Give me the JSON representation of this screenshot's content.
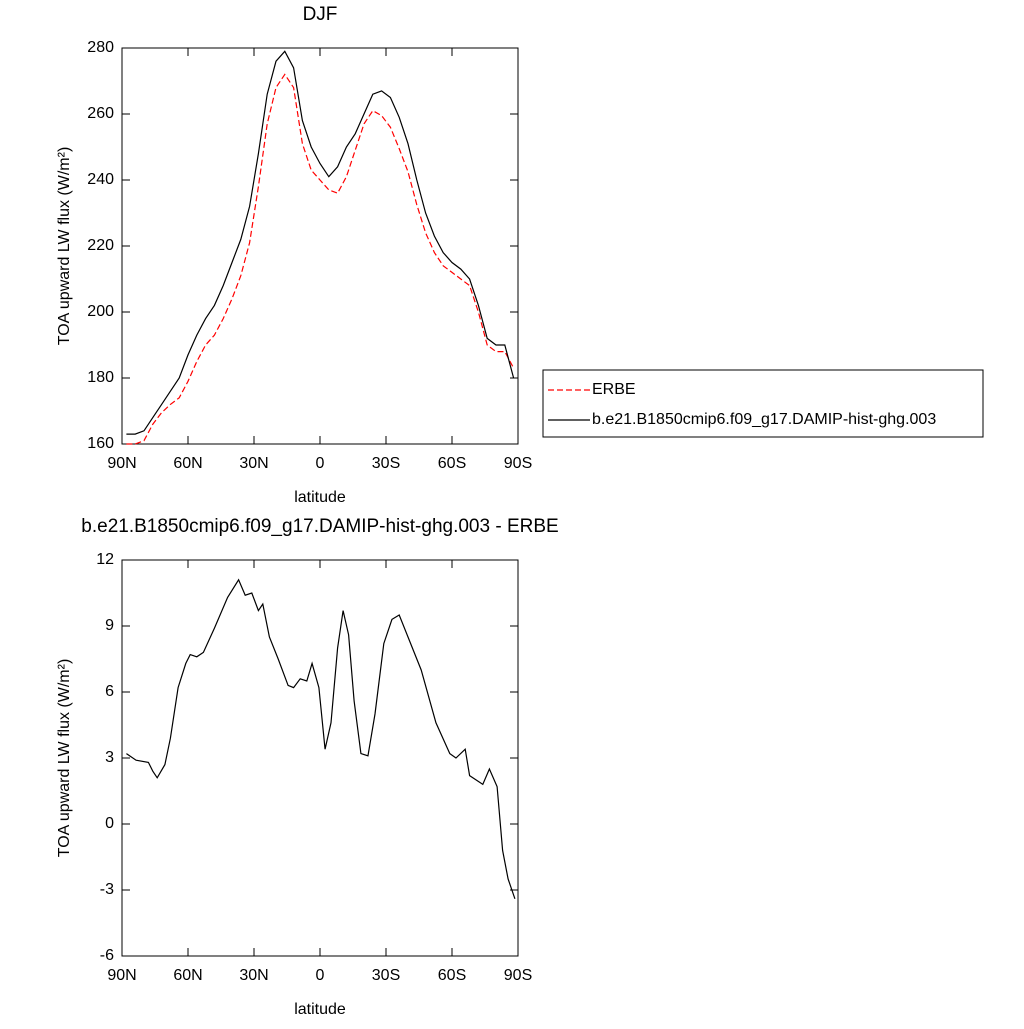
{
  "chart_data": [
    {
      "type": "line",
      "title": "DJF",
      "x_label": "latitude",
      "y_label": "TOA upward LW flux (W/m²)",
      "x": [
        88,
        84,
        80,
        76,
        72,
        68,
        64,
        60,
        56,
        52,
        48,
        44,
        40,
        36,
        32,
        28,
        24,
        20,
        16,
        12,
        8,
        4,
        0,
        -4,
        -8,
        -12,
        -16,
        -20,
        -24,
        -28,
        -32,
        -36,
        -40,
        -44,
        -48,
        -52,
        -56,
        -60,
        -64,
        -68,
        -72,
        -76,
        -80,
        -84,
        -88
      ],
      "series": [
        {
          "name": "ERBE",
          "color": "#ff0000",
          "line_style": "dashed",
          "values": [
            160,
            160,
            161,
            166,
            169.5,
            172,
            174,
            179,
            185,
            190,
            193,
            198,
            204,
            211,
            221,
            238,
            257,
            268,
            272,
            268,
            251,
            243,
            240,
            237,
            236,
            241,
            249,
            257,
            261,
            259.5,
            256,
            249.5,
            242.5,
            232.5,
            224,
            218,
            214,
            212,
            210,
            208,
            200,
            190,
            188,
            188,
            183
          ]
        },
        {
          "name": "b.e21.B1850cmip6.f09_g17.DAMIP-hist-ghg.003",
          "color": "#000000",
          "line_style": "solid",
          "values": [
            163,
            163,
            164,
            168,
            172,
            176,
            180,
            187,
            193,
            198,
            202,
            208,
            215,
            222,
            232,
            248,
            266,
            276,
            279,
            274,
            258,
            250,
            245,
            241,
            244,
            250,
            254,
            260,
            266,
            267,
            265,
            259,
            251,
            240,
            230,
            223,
            218,
            215,
            213,
            210,
            202,
            192,
            190,
            190,
            180
          ]
        }
      ],
      "xlim": [
        90,
        -90
      ],
      "xticks": [
        {
          "value": 90,
          "label": "90N"
        },
        {
          "value": 60,
          "label": "60N"
        },
        {
          "value": 30,
          "label": "30N"
        },
        0,
        {
          "value": -30,
          "label": "30S"
        },
        {
          "value": -60,
          "label": "60S"
        },
        {
          "value": -90,
          "label": "90S"
        }
      ],
      "ylim": [
        160,
        280
      ],
      "yticks": [
        160,
        180,
        200,
        220,
        240,
        260,
        280
      ],
      "legend": "right"
    },
    {
      "type": "line",
      "title": "b.e21.B1850cmip6.f09_g17.DAMIP-hist-ghg.003 - ERBE",
      "x_label": "latitude",
      "y_label": "TOA upward LW flux (W/m²)",
      "x": [
        88,
        83.6,
        78,
        76,
        74,
        70.5,
        68,
        64.5,
        61,
        59,
        56,
        53,
        48,
        42,
        37,
        34,
        31,
        28,
        26,
        23,
        19,
        14.5,
        12,
        9,
        6,
        3.6,
        0.5,
        -2.3,
        -5,
        -8,
        -10.5,
        -13,
        -15.5,
        -18.6,
        -21.8,
        -25,
        -29,
        -32.7,
        -36,
        -40,
        -46,
        -52.7,
        -59,
        -61.8,
        -66,
        -68,
        -74,
        -77,
        -80.5,
        -83,
        -85.5,
        -88.6
      ],
      "series": [
        {
          "color": "#000000",
          "line_style": "solid",
          "values": [
            3.2,
            2.9,
            2.8,
            2.4,
            2.1,
            2.7,
            3.9,
            6.2,
            7.3,
            7.7,
            7.6,
            7.8,
            8.9,
            10.3,
            11.1,
            10.4,
            10.5,
            9.7,
            10,
            8.5,
            7.5,
            6.3,
            6.2,
            6.6,
            6.5,
            7.3,
            6.2,
            3.4,
            4.6,
            8,
            9.7,
            8.6,
            5.6,
            3.2,
            3.1,
            5,
            8.2,
            9.3,
            9.5,
            8.5,
            7,
            4.6,
            3.2,
            3,
            3.4,
            2.2,
            1.8,
            2.5,
            1.7,
            -1.2,
            -2.5,
            -3.4
          ]
        }
      ],
      "xlim": [
        90,
        -90
      ],
      "xticks": [
        {
          "value": 90,
          "label": "90N"
        },
        {
          "value": 60,
          "label": "60N"
        },
        {
          "value": 30,
          "label": "30N"
        },
        0,
        {
          "value": -30,
          "label": "30S"
        },
        {
          "value": -60,
          "label": "60S"
        },
        {
          "value": -90,
          "label": "90S"
        }
      ],
      "ylim": [
        -6,
        12
      ],
      "yticks": [
        -6,
        -3,
        0,
        3,
        6,
        9,
        12
      ]
    }
  ]
}
